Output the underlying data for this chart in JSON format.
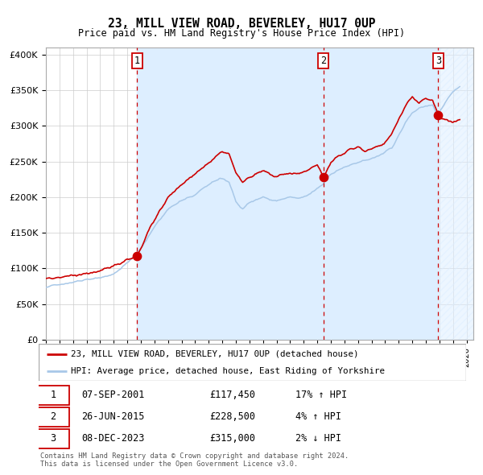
{
  "title": "23, MILL VIEW ROAD, BEVERLEY, HU17 0UP",
  "subtitle": "Price paid vs. HM Land Registry's House Price Index (HPI)",
  "legend_line1": "23, MILL VIEW ROAD, BEVERLEY, HU17 0UP (detached house)",
  "legend_line2": "HPI: Average price, detached house, East Riding of Yorkshire",
  "sale1_label": "07-SEP-2001",
  "sale1_price": 117450,
  "sale1_hpi": "17% ↑ HPI",
  "sale1_x": 2001.708,
  "sale2_label": "26-JUN-2015",
  "sale2_price": 228500,
  "sale2_hpi": "4% ↑ HPI",
  "sale2_x": 2015.458,
  "sale3_label": "08-DEC-2023",
  "sale3_price": 315000,
  "sale3_hpi": "2% ↓ HPI",
  "sale3_x": 2023.917,
  "red_line_color": "#cc0000",
  "blue_line_color": "#a8c8e8",
  "shading_color": "#ddeeff",
  "marker_color": "#cc0000",
  "background_color": "#ffffff",
  "grid_color": "#cccccc",
  "footnote": "Contains HM Land Registry data © Crown copyright and database right 2024.\nThis data is licensed under the Open Government Licence v3.0.",
  "xmin": 1995.0,
  "xmax": 2026.5,
  "ymin": 0,
  "ymax": 410000,
  "yticks": [
    0,
    50000,
    100000,
    150000,
    200000,
    250000,
    300000,
    350000,
    400000
  ]
}
